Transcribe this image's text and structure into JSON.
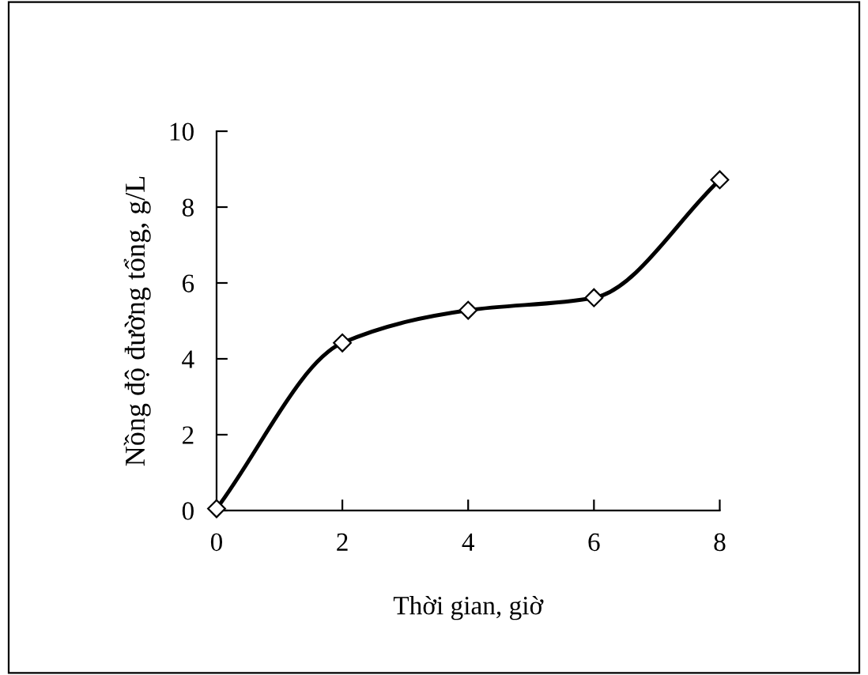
{
  "chart_data": {
    "type": "line",
    "xlabel": "Thời gian, giờ",
    "ylabel": "Nồng độ đường tổng, g/L",
    "x": [
      0,
      2,
      4,
      6,
      8
    ],
    "series": [
      {
        "color": "#000000",
        "values": [
          0.05,
          4.42,
          5.28,
          5.61,
          8.72
        ]
      }
    ],
    "xlim": [
      0,
      8
    ],
    "xticks": [
      0,
      2,
      4,
      6,
      8
    ],
    "ylim": [
      0,
      10
    ],
    "yticks": [
      0,
      2,
      4,
      6,
      8,
      10
    ],
    "marker": "diamond",
    "line_style": "solid",
    "grid": false,
    "legend": false
  }
}
